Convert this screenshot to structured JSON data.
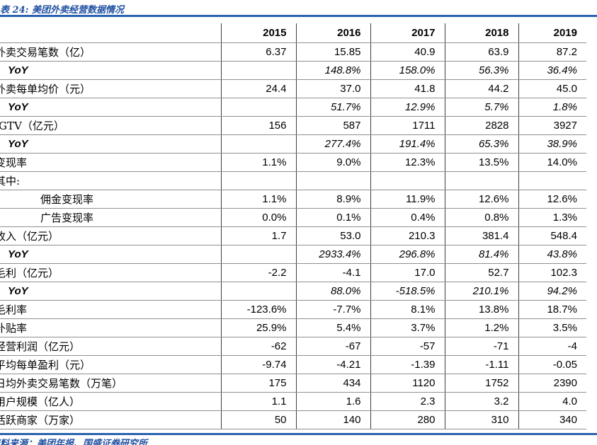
{
  "title": "表 24: 美团外卖经营数据情况",
  "footer": {
    "source": "资料来源：美团年报、国盛证券研究所"
  },
  "colors": {
    "accent_blue": "#1f50a1",
    "rule_blue": "#2a63ae",
    "grid_horizontal": "#8f8f8f",
    "grid_vertical": "#3d3d3d"
  },
  "chart_data": {
    "type": "table",
    "title": "表 24: 美团外卖经营数据情况",
    "categories": [
      "2015",
      "2016",
      "2017",
      "2018",
      "2019"
    ],
    "series_note": "rows mirror table.rows below"
  },
  "table": {
    "years": [
      "2015",
      "2016",
      "2017",
      "2018",
      "2019"
    ],
    "rows": [
      {
        "label": "外卖交易笔数（亿）",
        "indent": "main",
        "style": "normal",
        "values": [
          "6.37",
          "15.85",
          "40.9",
          "63.9",
          "87.2"
        ]
      },
      {
        "label": "YoY",
        "indent": "yoy",
        "style": "yoy",
        "values": [
          "",
          "148.8%",
          "158.0%",
          "56.3%",
          "36.4%"
        ]
      },
      {
        "label": "外卖每单均价（元）",
        "indent": "main",
        "style": "normal",
        "values": [
          "24.4",
          "37.0",
          "41.8",
          "44.2",
          "45.0"
        ]
      },
      {
        "label": "YoY",
        "indent": "yoy",
        "style": "yoy",
        "values": [
          "",
          "51.7%",
          "12.9%",
          "5.7%",
          "1.8%"
        ]
      },
      {
        "label": "GTV（亿元）",
        "indent": "gtv",
        "style": "normal",
        "values": [
          "156",
          "587",
          "1711",
          "2828",
          "3927"
        ]
      },
      {
        "label": "YoY",
        "indent": "yoy",
        "style": "yoy",
        "values": [
          "",
          "277.4%",
          "191.4%",
          "65.3%",
          "38.9%"
        ]
      },
      {
        "label": "变现率",
        "indent": "main",
        "style": "normal",
        "values": [
          "1.1%",
          "9.0%",
          "12.3%",
          "13.5%",
          "14.0%"
        ]
      },
      {
        "label": "其中:",
        "indent": "main",
        "style": "normal",
        "values": [
          "",
          "",
          "",
          "",
          ""
        ]
      },
      {
        "label": "佣金变现率",
        "indent": "sub",
        "style": "normal",
        "values": [
          "1.1%",
          "8.9%",
          "11.9%",
          "12.6%",
          "12.6%"
        ]
      },
      {
        "label": "广告变现率",
        "indent": "sub",
        "style": "normal",
        "values": [
          "0.0%",
          "0.1%",
          "0.4%",
          "0.8%",
          "1.3%"
        ]
      },
      {
        "label": "收入（亿元）",
        "indent": "main",
        "style": "normal",
        "values": [
          "1.7",
          "53.0",
          "210.3",
          "381.4",
          "548.4"
        ]
      },
      {
        "label": "YoY",
        "indent": "yoy",
        "style": "yoy",
        "values": [
          "",
          "2933.4%",
          "296.8%",
          "81.4%",
          "43.8%"
        ]
      },
      {
        "label": "毛利（亿元）",
        "indent": "main",
        "style": "normal",
        "values": [
          "-2.2",
          "-4.1",
          "17.0",
          "52.7",
          "102.3"
        ]
      },
      {
        "label": "YoY",
        "indent": "yoy",
        "style": "yoy",
        "values": [
          "",
          "88.0%",
          "-518.5%",
          "210.1%",
          "94.2%"
        ]
      },
      {
        "label": "毛利率",
        "indent": "main",
        "style": "normal",
        "values": [
          "-123.6%",
          "-7.7%",
          "8.1%",
          "13.8%",
          "18.7%"
        ]
      },
      {
        "label": "补贴率",
        "indent": "main",
        "style": "normal",
        "values": [
          "25.9%",
          "5.4%",
          "3.7%",
          "1.2%",
          "3.5%"
        ]
      },
      {
        "label": "经营利润（亿元）",
        "indent": "main",
        "style": "normal",
        "values": [
          "-62",
          "-67",
          "-57",
          "-71",
          "-4"
        ]
      },
      {
        "label": "平均每单盈利（元）",
        "indent": "main",
        "style": "normal",
        "values": [
          "-9.74",
          "-4.21",
          "-1.39",
          "-1.11",
          "-0.05"
        ]
      },
      {
        "label": "日均外卖交易笔数（万笔）",
        "indent": "main",
        "style": "normal",
        "values": [
          "175",
          "434",
          "1120",
          "1752",
          "2390"
        ]
      },
      {
        "label": "用户规模（亿人）",
        "indent": "main",
        "style": "normal",
        "values": [
          "1.1",
          "1.6",
          "2.3",
          "3.2",
          "4.0"
        ]
      },
      {
        "label": "活跃商家（万家）",
        "indent": "main",
        "style": "normal",
        "values": [
          "50",
          "140",
          "280",
          "310",
          "340"
        ]
      }
    ]
  }
}
